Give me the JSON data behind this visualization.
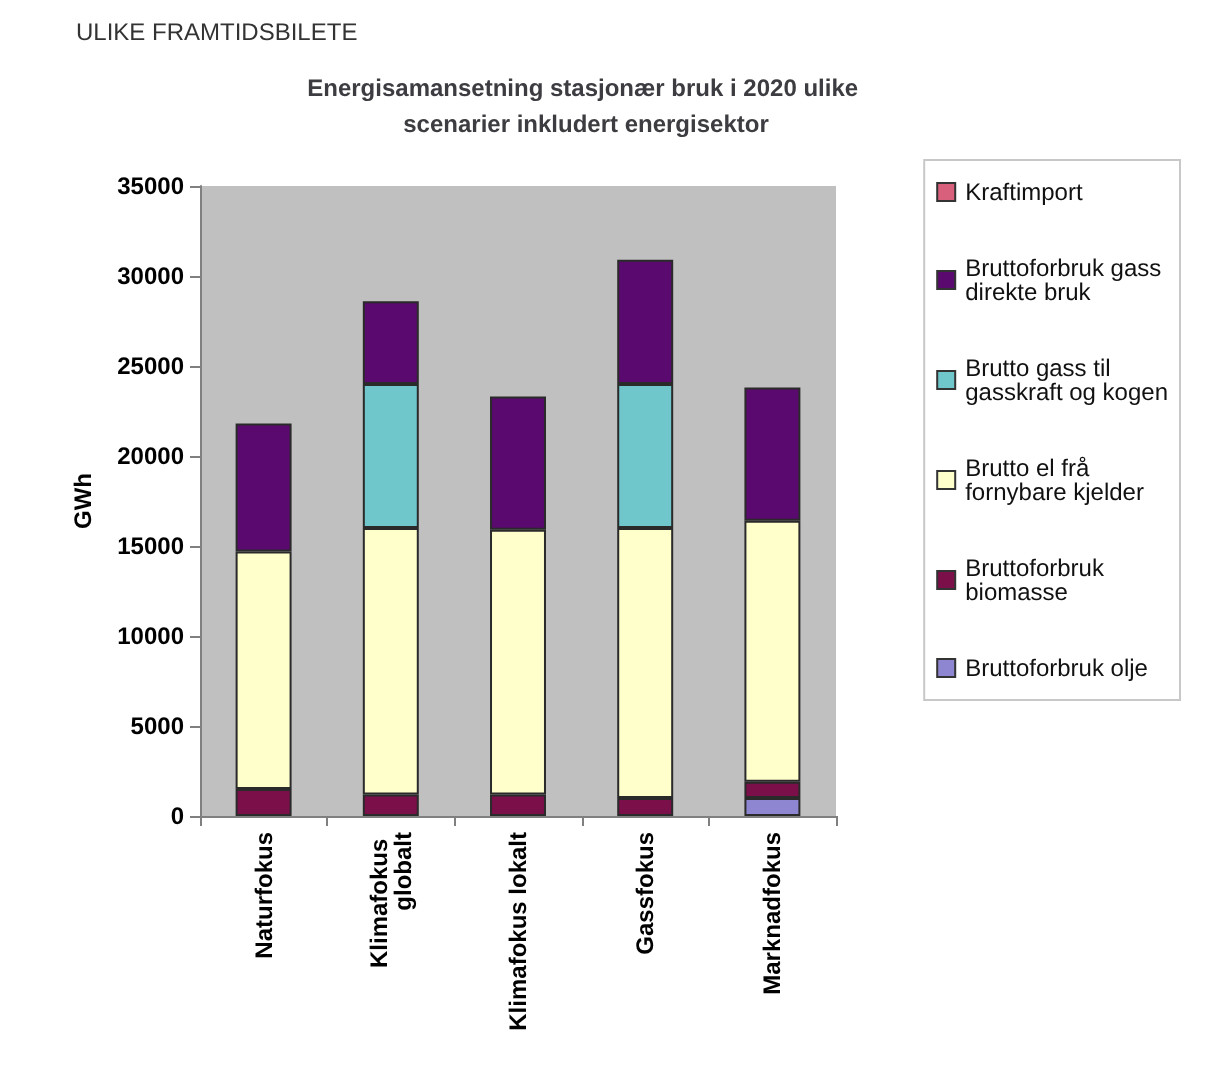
{
  "chart_data": {
    "type": "bar",
    "title": "Energisamansetning stasjonær bruk i 2020 ulike scenarier inkludert energisektor",
    "annotations": [
      "ULIKE FRAMTIDSBILETE"
    ],
    "ylabel": "GWh",
    "categories": [
      "Naturfokus",
      "Klimafokus globalt",
      "Klimafokus lokalt",
      "Gassfokus",
      "Marknadfokus"
    ],
    "stacked": true,
    "ylim": [
      0,
      35000
    ],
    "yticks": [
      0,
      5000,
      10000,
      15000,
      20000,
      25000,
      30000,
      35000
    ],
    "grid": false,
    "legend": "right",
    "series": [
      {
        "name": "Bruttoforbruk olje",
        "color": "#8e86d0",
        "values": [
          0,
          0,
          0,
          0,
          1000
        ]
      },
      {
        "name": "Bruttoforbruk biomasse",
        "color": "#7a0f4a",
        "values": [
          1500,
          1200,
          1200,
          1000,
          900
        ]
      },
      {
        "name": "Brutto el frå fornybare kjelder",
        "color": "#ffffcc",
        "values": [
          13200,
          14800,
          14700,
          15000,
          14500
        ]
      },
      {
        "name": "Brutto gass til gasskraft og kogen",
        "color": "#6fc7cc",
        "values": [
          0,
          8000,
          0,
          8000,
          0
        ]
      },
      {
        "name": "Bruttoforbruk gass direkte bruk",
        "color": "#5a0a6e",
        "values": [
          7100,
          4600,
          7400,
          6900,
          7400
        ]
      },
      {
        "name": "Kraftimport",
        "color": "#d8607c",
        "values": [
          0,
          0,
          0,
          0,
          0
        ]
      }
    ]
  }
}
